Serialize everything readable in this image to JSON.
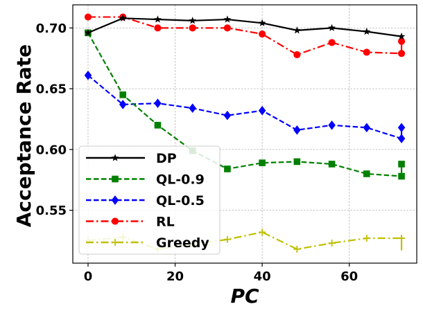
{
  "chart_data": {
    "type": "line",
    "xlabel": "PC",
    "ylabel": "Acceptance Rate",
    "xlim": [
      -3.5,
      75.5
    ],
    "ylim": [
      0.5065,
      0.719
    ],
    "xticks": [
      0,
      20,
      40,
      60
    ],
    "yticks": [
      0.55,
      0.6,
      0.65,
      0.7
    ],
    "xtick_labels": [
      "0",
      "20",
      "40",
      "60"
    ],
    "ytick_labels": [
      "0.55",
      "0.60",
      "0.65",
      "0.70"
    ],
    "grid": true,
    "legend_position": "lower-left",
    "series": [
      {
        "name": "DP",
        "color": "#000000",
        "linestyle": "solid",
        "marker": "star",
        "x": [
          0,
          8,
          16,
          24,
          32,
          40,
          48,
          56,
          64,
          72
        ],
        "y": [
          0.696,
          0.708,
          0.707,
          0.706,
          0.707,
          0.704,
          0.698,
          0.7,
          0.697,
          0.693
        ]
      },
      {
        "name": "QL-0.9",
        "color": "#008000",
        "linestyle": "dashed",
        "marker": "square",
        "x": [
          0,
          8,
          16,
          24,
          32,
          40,
          48,
          56,
          64,
          72
        ],
        "y": [
          0.696,
          0.645,
          0.62,
          0.599,
          0.584,
          0.589,
          0.59,
          0.588,
          0.58,
          0.578
        ],
        "errorbar": {
          "x": 72,
          "low": 0.578,
          "high": 0.588
        }
      },
      {
        "name": "QL-0.5",
        "color": "#0000ff",
        "linestyle": "dashed",
        "marker": "diamond",
        "x": [
          0,
          8,
          16,
          24,
          32,
          40,
          48,
          56,
          64,
          72
        ],
        "y": [
          0.661,
          0.637,
          0.638,
          0.634,
          0.628,
          0.632,
          0.616,
          0.62,
          0.618,
          0.609
        ],
        "errorbar": {
          "x": 72,
          "low": 0.609,
          "high": 0.618
        }
      },
      {
        "name": "RL",
        "color": "#ff0000",
        "linestyle": "dashdot",
        "marker": "circle",
        "x": [
          0,
          8,
          16,
          24,
          32,
          40,
          48,
          56,
          64,
          72
        ],
        "y": [
          0.709,
          0.709,
          0.7,
          0.7,
          0.7,
          0.695,
          0.678,
          0.688,
          0.68,
          0.679
        ],
        "errorbar": {
          "x": 72,
          "low": 0.679,
          "high": 0.689
        }
      },
      {
        "name": "Greedy",
        "color": "#bfbf00",
        "linestyle": "dashdot",
        "marker": "plus",
        "x": [
          0,
          8,
          16,
          24,
          32,
          40,
          48,
          56,
          64,
          72
        ],
        "y": [
          0.525,
          0.528,
          0.518,
          0.522,
          0.526,
          0.532,
          0.518,
          0.523,
          0.527,
          0.527
        ],
        "errorbar": {
          "x": 72,
          "low": 0.517,
          "high": 0.527
        }
      }
    ]
  }
}
